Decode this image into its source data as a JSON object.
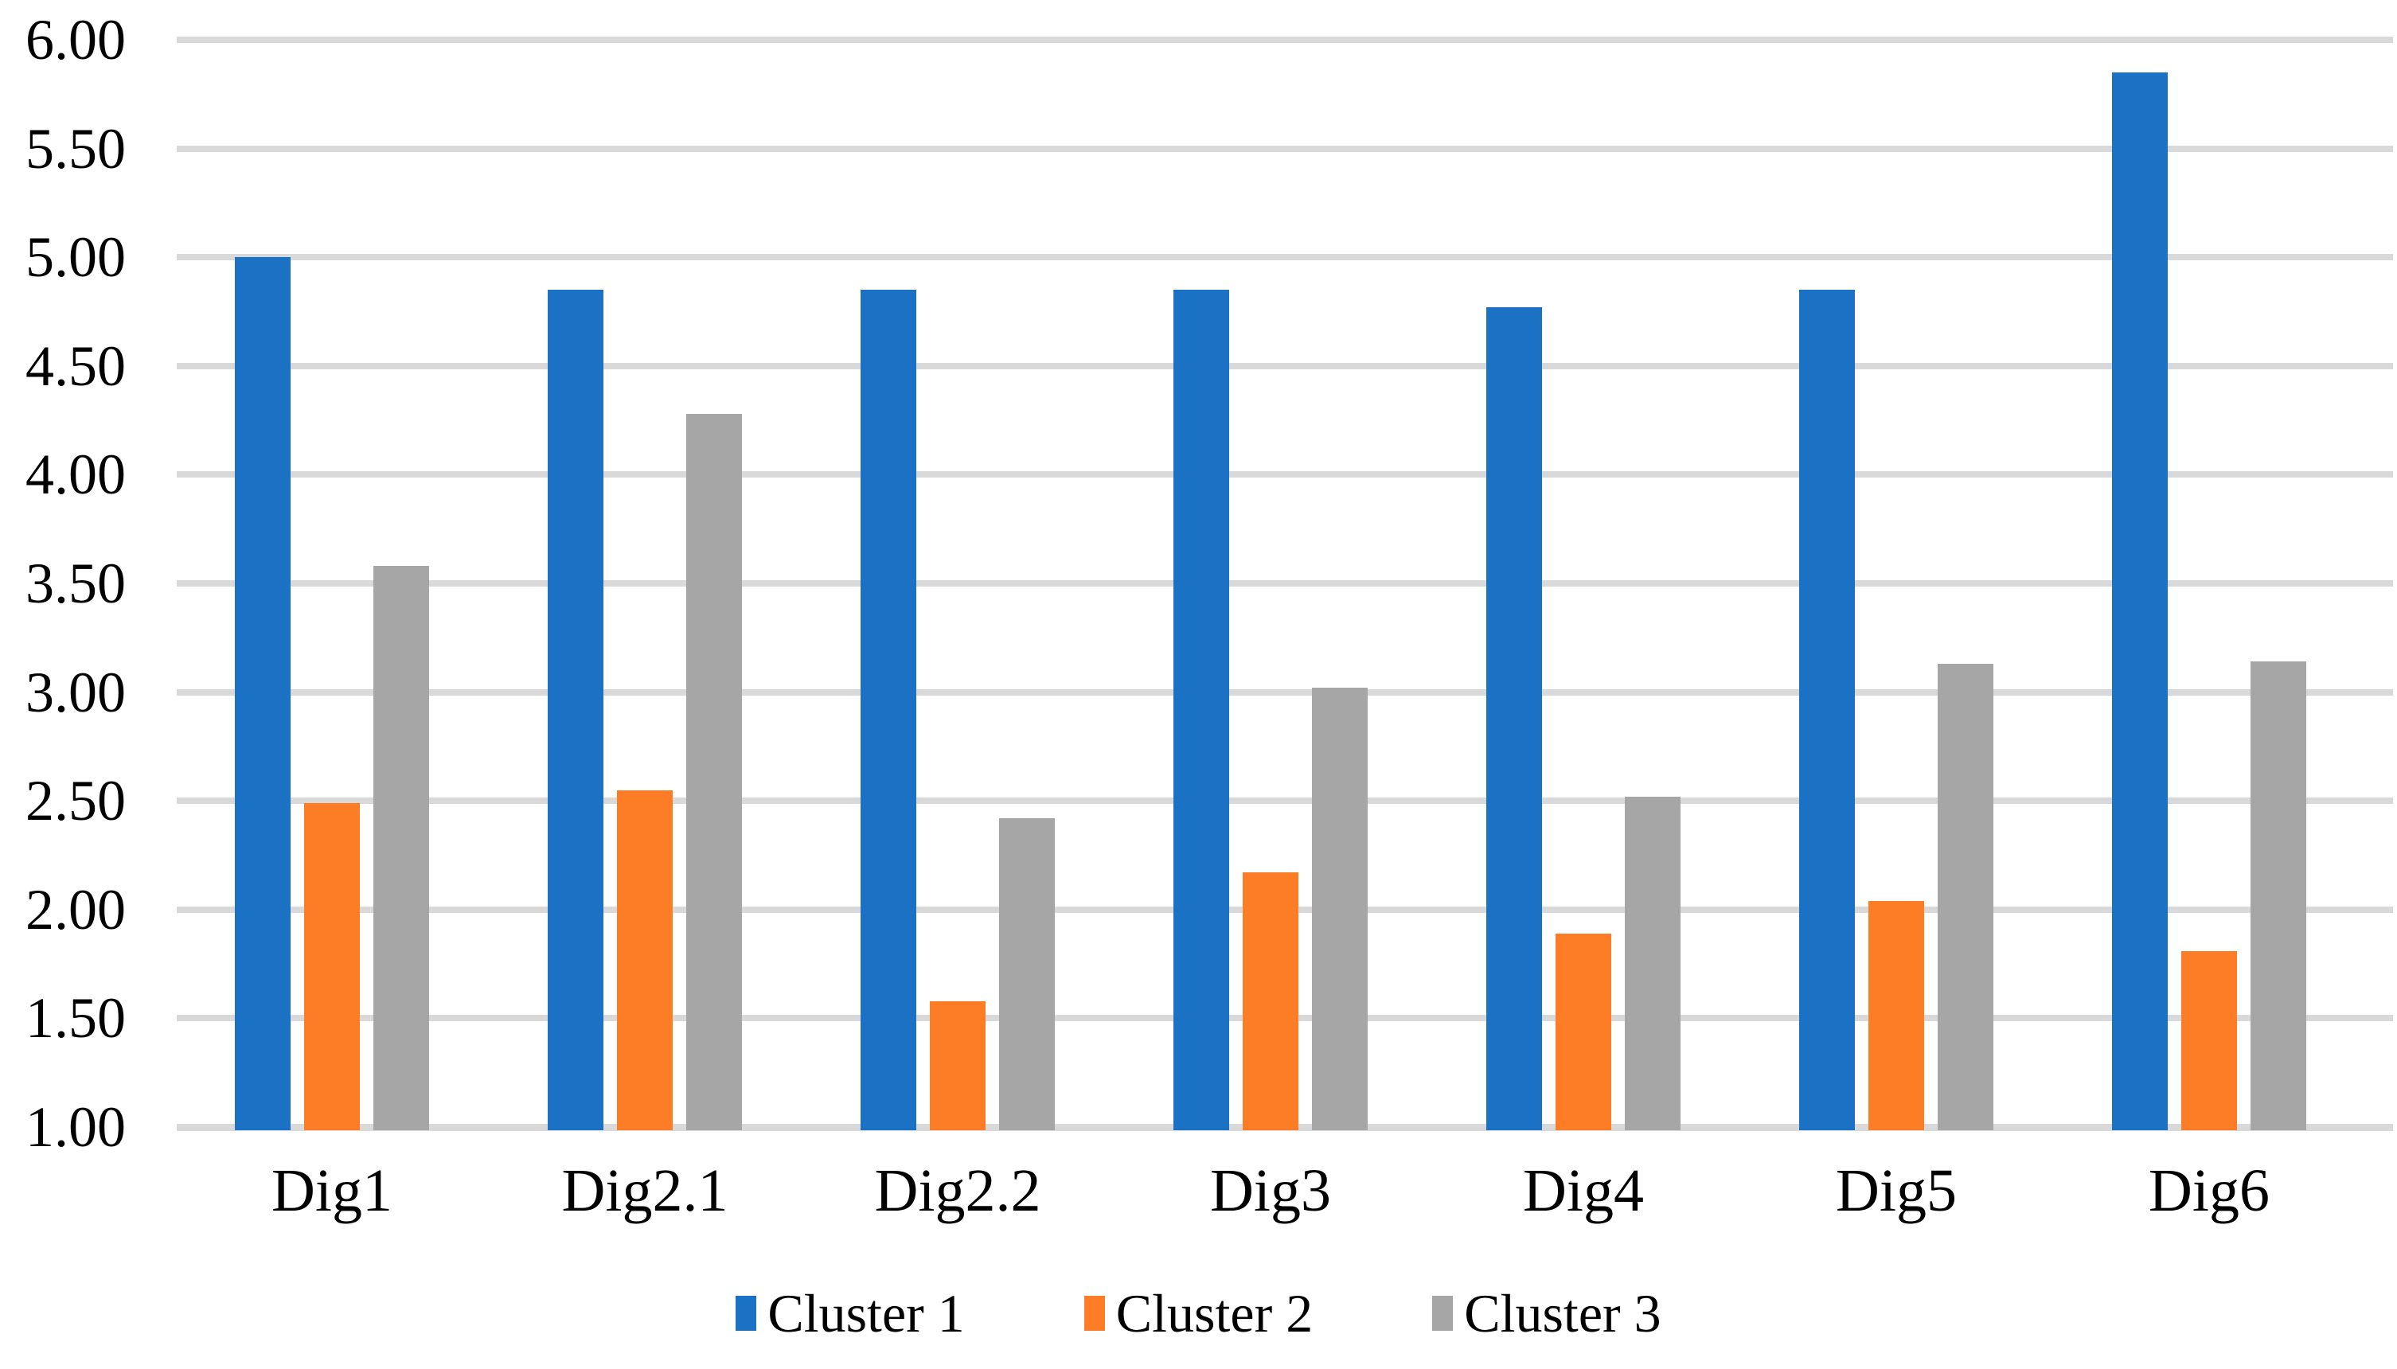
{
  "chart_data": {
    "type": "bar",
    "title": "",
    "categories": [
      "Dig1",
      "Dig2.1",
      "Dig2.2",
      "Dig3",
      "Dig4",
      "Dig5",
      "Dig6"
    ],
    "series": [
      {
        "name": "Cluster 1",
        "color": "#1b72c4",
        "values": [
          5.0,
          4.85,
          4.85,
          4.85,
          4.77,
          4.85,
          5.85
        ]
      },
      {
        "name": "Cluster 2",
        "color": "#fd7d26",
        "values": [
          2.49,
          2.55,
          1.58,
          2.17,
          1.89,
          2.04,
          1.81
        ]
      },
      {
        "name": "Cluster 3",
        "color": "#a6a6a6",
        "values": [
          3.58,
          4.28,
          2.42,
          3.02,
          2.52,
          3.13,
          3.14
        ]
      }
    ],
    "y_axis": {
      "min": 1.0,
      "max": 6.0,
      "step": 0.5,
      "tick_labels": [
        "1.00",
        "1.50",
        "2.00",
        "2.50",
        "3.00",
        "3.50",
        "4.00",
        "4.50",
        "5.00",
        "5.50",
        "6.00"
      ]
    },
    "xlabel": "",
    "ylabel": "",
    "grid": true,
    "gridline_color": "#d9d9d9",
    "background_color": "#ffffff",
    "text_color": "#000000",
    "legend_position": "bottom"
  }
}
